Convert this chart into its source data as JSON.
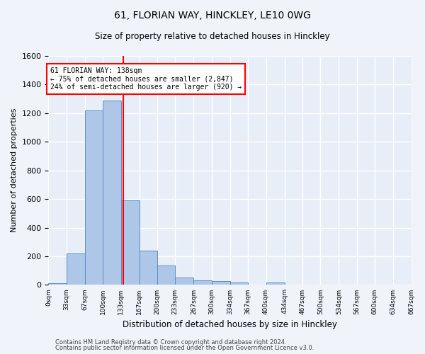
{
  "title": "61, FLORIAN WAY, HINCKLEY, LE10 0WG",
  "subtitle": "Size of property relative to detached houses in Hinckley",
  "xlabel": "Distribution of detached houses by size in Hinckley",
  "ylabel": "Number of detached properties",
  "bar_edges": [
    0,
    33,
    67,
    100,
    133,
    167,
    200,
    233,
    267,
    300,
    334,
    367,
    400,
    434,
    467,
    500,
    534,
    567,
    600,
    634,
    667
  ],
  "bar_heights": [
    10,
    220,
    1220,
    1290,
    590,
    240,
    135,
    50,
    30,
    25,
    15,
    0,
    15,
    0,
    0,
    0,
    0,
    0,
    0,
    0
  ],
  "bar_color": "#aec6e8",
  "bar_edge_color": "#5a8fc2",
  "annotation_text": "61 FLORIAN WAY: 138sqm\n← 75% of detached houses are smaller (2,847)\n24% of semi-detached houses are larger (920) →",
  "annotation_box_color": "white",
  "annotation_box_edge_color": "red",
  "vline_color": "red",
  "vline_x": 138,
  "ylim": [
    0,
    1600
  ],
  "yticks": [
    0,
    200,
    400,
    600,
    800,
    1000,
    1200,
    1400,
    1600
  ],
  "tick_labels": [
    "0sqm",
    "33sqm",
    "67sqm",
    "100sqm",
    "133sqm",
    "167sqm",
    "200sqm",
    "233sqm",
    "267sqm",
    "300sqm",
    "334sqm",
    "367sqm",
    "400sqm",
    "434sqm",
    "467sqm",
    "500sqm",
    "534sqm",
    "567sqm",
    "600sqm",
    "634sqm",
    "667sqm"
  ],
  "footer_line1": "Contains HM Land Registry data © Crown copyright and database right 2024.",
  "footer_line2": "Contains public sector information licensed under the Open Government Licence v3.0.",
  "bg_color": "#f0f4fa",
  "plot_bg_color": "#e8eef8",
  "grid_color": "white",
  "figsize": [
    6.0,
    5.0
  ],
  "dpi": 100
}
